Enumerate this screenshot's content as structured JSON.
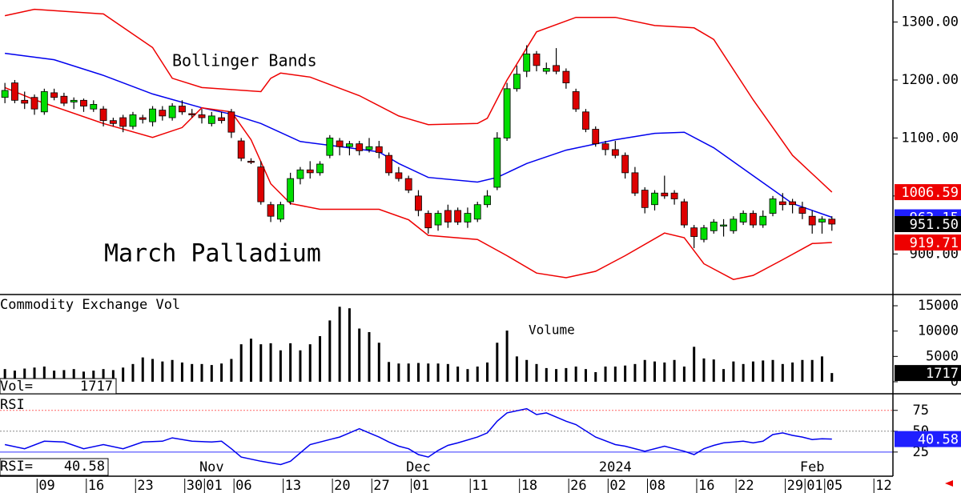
{
  "chart_data": [
    {
      "type": "candlestick",
      "title": "March Palladium",
      "annotation": "Bollinger Bands",
      "x": [
        0,
        1,
        2,
        3,
        4,
        5,
        6,
        7,
        8,
        9,
        10,
        11,
        12,
        13,
        14,
        15,
        16,
        17,
        18,
        19,
        20,
        21,
        22,
        23,
        24,
        25,
        26,
        27,
        28,
        29,
        30,
        31,
        32,
        33,
        34,
        35,
        36,
        37,
        38,
        39,
        40,
        41,
        42,
        43,
        44,
        45,
        46,
        47,
        48,
        49,
        50,
        51,
        52,
        53,
        54,
        55,
        56,
        57,
        58,
        59,
        60,
        61,
        62,
        63,
        64,
        65,
        66,
        67,
        68,
        69,
        70,
        71,
        72,
        73,
        74,
        75,
        76,
        77,
        78,
        79,
        80,
        81,
        82,
        83,
        84
      ],
      "ohlc": [
        [
          1170,
          1195,
          1160,
          1182
        ],
        [
          1195,
          1200,
          1160,
          1165
        ],
        [
          1165,
          1180,
          1150,
          1160
        ],
        [
          1170,
          1175,
          1140,
          1150
        ],
        [
          1145,
          1185,
          1140,
          1180
        ],
        [
          1178,
          1185,
          1165,
          1170
        ],
        [
          1172,
          1178,
          1155,
          1160
        ],
        [
          1162,
          1170,
          1150,
          1165
        ],
        [
          1165,
          1168,
          1145,
          1155
        ],
        [
          1150,
          1165,
          1145,
          1158
        ],
        [
          1150,
          1155,
          1120,
          1130
        ],
        [
          1130,
          1135,
          1120,
          1125
        ],
        [
          1135,
          1140,
          1110,
          1120
        ],
        [
          1120,
          1145,
          1115,
          1140
        ],
        [
          1135,
          1140,
          1125,
          1132
        ],
        [
          1128,
          1155,
          1120,
          1150
        ],
        [
          1148,
          1155,
          1130,
          1138
        ],
        [
          1135,
          1160,
          1130,
          1155
        ],
        [
          1155,
          1165,
          1140,
          1145
        ],
        [
          1142,
          1150,
          1135,
          1140
        ],
        [
          1140,
          1150,
          1125,
          1135
        ],
        [
          1125,
          1145,
          1120,
          1138
        ],
        [
          1135,
          1145,
          1125,
          1130
        ],
        [
          1145,
          1150,
          1100,
          1110
        ],
        [
          1095,
          1100,
          1060,
          1065
        ],
        [
          1060,
          1065,
          1055,
          1058
        ],
        [
          1050,
          1060,
          985,
          990
        ],
        [
          985,
          990,
          955,
          965
        ],
        [
          960,
          990,
          955,
          985
        ],
        [
          990,
          1040,
          985,
          1030
        ],
        [
          1030,
          1050,
          1020,
          1045
        ],
        [
          1045,
          1060,
          1030,
          1040
        ],
        [
          1040,
          1060,
          1035,
          1055
        ],
        [
          1070,
          1105,
          1065,
          1100
        ],
        [
          1095,
          1100,
          1070,
          1085
        ],
        [
          1085,
          1095,
          1070,
          1090
        ],
        [
          1090,
          1095,
          1070,
          1078
        ],
        [
          1080,
          1100,
          1075,
          1085
        ],
        [
          1085,
          1095,
          1065,
          1075
        ],
        [
          1070,
          1075,
          1035,
          1040
        ],
        [
          1040,
          1050,
          1025,
          1030
        ],
        [
          1030,
          1035,
          1005,
          1010
        ],
        [
          1000,
          1010,
          965,
          975
        ],
        [
          970,
          975,
          935,
          945
        ],
        [
          950,
          975,
          940,
          970
        ],
        [
          975,
          985,
          945,
          955
        ],
        [
          975,
          980,
          950,
          955
        ],
        [
          955,
          980,
          945,
          970
        ],
        [
          960,
          990,
          955,
          985
        ],
        [
          985,
          1010,
          980,
          1000
        ],
        [
          1015,
          1110,
          1010,
          1100
        ],
        [
          1100,
          1195,
          1095,
          1185
        ],
        [
          1185,
          1225,
          1180,
          1210
        ],
        [
          1215,
          1260,
          1205,
          1245
        ],
        [
          1245,
          1250,
          1215,
          1225
        ],
        [
          1215,
          1230,
          1210,
          1220
        ],
        [
          1225,
          1255,
          1210,
          1215
        ],
        [
          1215,
          1220,
          1185,
          1195
        ],
        [
          1180,
          1185,
          1145,
          1150
        ],
        [
          1145,
          1150,
          1110,
          1115
        ],
        [
          1115,
          1120,
          1085,
          1090
        ],
        [
          1090,
          1095,
          1070,
          1080
        ],
        [
          1080,
          1095,
          1065,
          1070
        ],
        [
          1070,
          1075,
          1030,
          1040
        ],
        [
          1040,
          1050,
          1000,
          1005
        ],
        [
          1010,
          1015,
          970,
          980
        ],
        [
          985,
          1010,
          975,
          1005
        ],
        [
          1005,
          1035,
          995,
          1000
        ],
        [
          1005,
          1010,
          985,
          995
        ],
        [
          990,
          995,
          945,
          950
        ],
        [
          945,
          950,
          910,
          930
        ],
        [
          925,
          950,
          920,
          945
        ],
        [
          940,
          960,
          935,
          955
        ],
        [
          950,
          960,
          930,
          950
        ],
        [
          940,
          965,
          935,
          960
        ],
        [
          955,
          975,
          950,
          970
        ],
        [
          970,
          975,
          945,
          950
        ],
        [
          950,
          975,
          945,
          965
        ],
        [
          970,
          1000,
          965,
          995
        ],
        [
          990,
          1005,
          975,
          985
        ],
        [
          990,
          995,
          970,
          985
        ],
        [
          980,
          990,
          960,
          970
        ],
        [
          965,
          975,
          935,
          950
        ],
        [
          955,
          965,
          935,
          960
        ],
        [
          960,
          965,
          940,
          951.5
        ]
      ],
      "up_color": "#00dd00",
      "down_color": "#dd0000",
      "series": [
        {
          "type": "line",
          "color": "#ee0000",
          "x": [
            0,
            3,
            10,
            15,
            17,
            20,
            26,
            27,
            28,
            31,
            36,
            40,
            43,
            48,
            49,
            51,
            54,
            58,
            62,
            66,
            70,
            72,
            76,
            80,
            84
          ],
          "values": [
            1311,
            1322,
            1314,
            1256,
            1203,
            1187,
            1180,
            1203,
            1212,
            1205,
            1173,
            1138,
            1123,
            1125,
            1134,
            1200,
            1283,
            1308,
            1308,
            1294,
            1290,
            1270,
            1166,
            1070,
            1006.59
          ]
        },
        {
          "type": "line",
          "color": "#0000ee",
          "x": [
            0,
            5,
            10,
            15,
            20,
            23,
            26,
            30,
            35,
            38,
            40,
            43,
            48,
            50,
            53,
            57,
            62,
            66,
            69,
            72,
            76,
            80,
            84
          ],
          "values": [
            1246,
            1235,
            1208,
            1176,
            1152,
            1141,
            1125,
            1094,
            1083,
            1076,
            1056,
            1032,
            1024,
            1032,
            1056,
            1079,
            1097,
            1108,
            1110,
            1083,
            1035,
            987,
            963.15
          ]
        },
        {
          "type": "line",
          "color": "#ee0000",
          "x": [
            0,
            3,
            10,
            15,
            18,
            20,
            23,
            25,
            27,
            29,
            32,
            38,
            41,
            43,
            48,
            51,
            54,
            57,
            60,
            63,
            67,
            69,
            71,
            74,
            76,
            79,
            82,
            84
          ],
          "values": [
            1187,
            1166,
            1125,
            1101,
            1118,
            1152,
            1145,
            1097,
            1021,
            987,
            977,
            977,
            959,
            932,
            925,
            897,
            867,
            859,
            870,
            897,
            936,
            928,
            883,
            856,
            863,
            890,
            918,
            919.71
          ]
        }
      ],
      "price_labels": [
        {
          "value": 1006.59,
          "label": "1006.59",
          "color": "#ee0000"
        },
        {
          "value": 963.15,
          "label": "963.15",
          "color": "#1f1fff"
        },
        {
          "value": 951.5,
          "label": "951.50",
          "color": "#000000"
        },
        {
          "value": 919.71,
          "label": "919.71",
          "color": "#ee0000"
        }
      ],
      "xlim": [
        -0.5,
        90.2
      ],
      "ylim": [
        830,
        1338
      ],
      "yticks": [
        {
          "value": 900,
          "label": "900.00"
        },
        {
          "value": 1000,
          "label": "1000.00"
        },
        {
          "value": 1100,
          "label": "1100.00"
        },
        {
          "value": 1200,
          "label": "1200.00"
        },
        {
          "value": 1300,
          "label": "1300.00"
        }
      ],
      "xticks": [
        {
          "value": 4,
          "label": "09"
        },
        {
          "value": 9,
          "label": "16"
        },
        {
          "value": 14,
          "label": "23"
        },
        {
          "value": 19,
          "label": "30"
        },
        {
          "value": 21,
          "label": "01"
        },
        {
          "value": 24,
          "label": "06"
        },
        {
          "value": 29,
          "label": "13"
        },
        {
          "value": 34,
          "label": "20"
        },
        {
          "value": 38,
          "label": "27"
        },
        {
          "value": 42,
          "label": "01"
        },
        {
          "value": 48,
          "label": "11"
        },
        {
          "value": 53,
          "label": "18"
        },
        {
          "value": 58,
          "label": "26"
        },
        {
          "value": 62,
          "label": "02"
        },
        {
          "value": 66,
          "label": "08"
        },
        {
          "value": 71,
          "label": "16"
        },
        {
          "value": 75,
          "label": "22"
        },
        {
          "value": 80,
          "label": "29"
        },
        {
          "value": 82,
          "label": "01"
        },
        {
          "value": 84,
          "label": "05"
        },
        {
          "value": 89,
          "label": "12"
        }
      ],
      "month_labels": [
        {
          "value": 21,
          "label": "Nov"
        },
        {
          "value": 42,
          "label": "Dec"
        },
        {
          "value": 62,
          "label": "2024"
        },
        {
          "value": 82,
          "label": "Feb"
        }
      ]
    },
    {
      "type": "bar",
      "title": "Commodity Exchange Vol",
      "annotation": "Volume",
      "readout": "Vol=",
      "color": "#000000",
      "x": [
        0,
        1,
        2,
        3,
        4,
        5,
        6,
        7,
        8,
        9,
        10,
        11,
        12,
        13,
        14,
        15,
        16,
        17,
        18,
        19,
        20,
        21,
        22,
        23,
        24,
        25,
        26,
        27,
        28,
        29,
        30,
        31,
        32,
        33,
        34,
        35,
        36,
        37,
        38,
        39,
        40,
        41,
        42,
        43,
        44,
        45,
        46,
        47,
        48,
        49,
        50,
        51,
        52,
        53,
        54,
        55,
        56,
        57,
        58,
        59,
        60,
        61,
        62,
        63,
        64,
        65,
        66,
        67,
        68,
        69,
        70,
        71,
        72,
        73,
        74,
        75,
        76,
        77,
        78,
        79,
        80,
        81,
        82,
        83,
        84
      ],
      "values": [
        2500,
        2200,
        2600,
        2800,
        3000,
        2200,
        2300,
        2500,
        2000,
        2200,
        2500,
        2300,
        2800,
        3500,
        4800,
        4500,
        4000,
        4300,
        3800,
        3500,
        3500,
        3300,
        3600,
        4500,
        7400,
        8500,
        7400,
        7600,
        6200,
        7600,
        6200,
        7400,
        9000,
        12100,
        14800,
        14500,
        10500,
        9800,
        7700,
        3900,
        3600,
        3600,
        3700,
        3600,
        3600,
        3500,
        3000,
        2500,
        3000,
        3800,
        7700,
        10100,
        5000,
        4300,
        3500,
        2700,
        2500,
        2700,
        3000,
        2500,
        1900,
        3000,
        3000,
        3200,
        3500,
        4300,
        4000,
        3800,
        4300,
        3000,
        6900,
        4600,
        4400,
        2500,
        4000,
        3500,
        4000,
        4200,
        4300,
        3500,
        3800,
        4300,
        4300,
        5000,
        1717
      ],
      "ylim": [
        -2370,
        16900
      ],
      "yticks": [
        0,
        5000,
        10000,
        15000
      ]
    },
    {
      "type": "line",
      "title": "RSI",
      "readout": "RSI=",
      "color": "#0000ee",
      "label_color": "#1f1fff",
      "x": [
        0,
        2,
        4,
        6,
        8,
        10,
        12,
        14,
        16,
        17,
        19,
        21,
        22,
        23,
        24,
        26,
        28,
        29,
        31,
        33,
        34,
        35,
        36,
        37,
        38,
        39,
        40,
        41,
        42,
        43,
        44,
        45,
        46,
        48,
        49,
        50,
        51,
        53,
        54,
        55,
        57,
        58,
        60,
        62,
        63,
        65,
        67,
        68,
        69,
        70,
        71,
        72,
        73,
        75,
        76,
        77,
        78,
        79,
        80,
        81,
        82,
        83,
        84
      ],
      "values": [
        34,
        29,
        38,
        37,
        29,
        34,
        29,
        37,
        38,
        42,
        38,
        37,
        38,
        29,
        19,
        14,
        10,
        14,
        34,
        40,
        43,
        48,
        53,
        48,
        43,
        37,
        32,
        29,
        22,
        19,
        27,
        33,
        36,
        43,
        48,
        62,
        72,
        77,
        70,
        72,
        62,
        58,
        43,
        34,
        32,
        26,
        32,
        29,
        26,
        22,
        29,
        33,
        36,
        38,
        36,
        38,
        46,
        48,
        45,
        43,
        40,
        41,
        40.58
      ],
      "ylim": [
        -3,
        93
      ],
      "yticks": [
        25,
        50,
        75
      ],
      "grid_colors": [
        "#3333ff",
        "#888888",
        "#ff6666"
      ]
    }
  ]
}
